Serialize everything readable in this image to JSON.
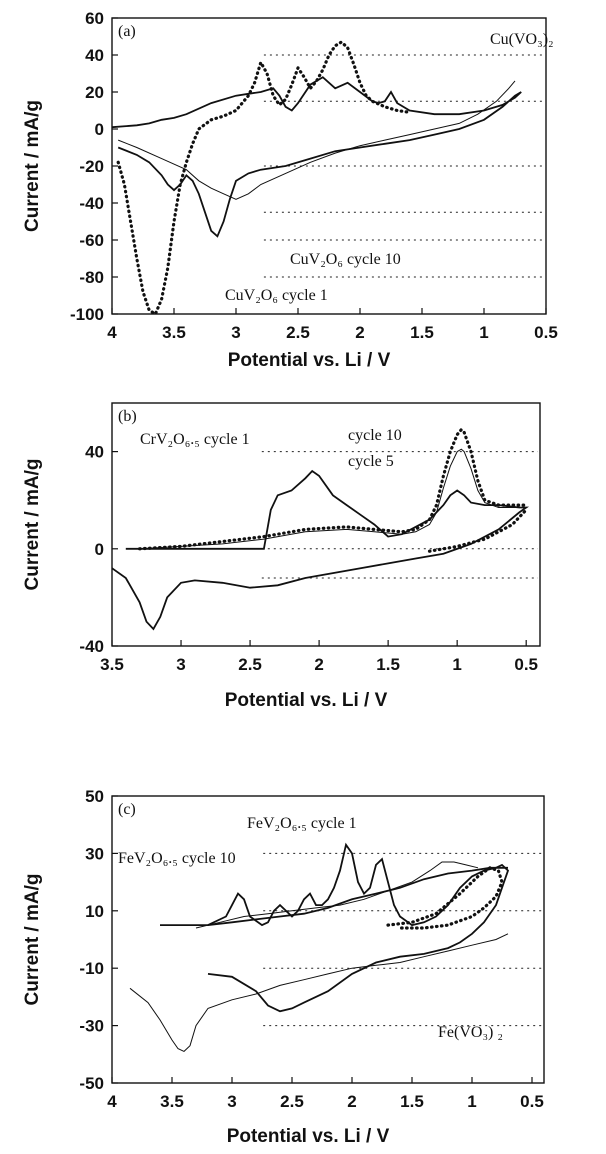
{
  "chart_data": [
    {
      "type": "line",
      "panel_label": "(a)",
      "xlabel": "Potential vs. Li  / V",
      "ylabel": "Current  / mA/g",
      "xlim": [
        4,
        0.5
      ],
      "ylim": [
        -100,
        60
      ],
      "xticks": [
        4,
        3.5,
        3,
        2.5,
        2,
        1.5,
        1,
        0.5
      ],
      "xtick_labels": [
        "4",
        "3.5",
        "3",
        "2.5",
        "2",
        "1.5",
        "1",
        "0.5"
      ],
      "yticks": [
        -100,
        -80,
        -60,
        -40,
        -20,
        0,
        20,
        40,
        60
      ],
      "ytick_labels": [
        "-100",
        "-80",
        "-60",
        "-40",
        "-20",
        "0",
        "20",
        "40",
        "60"
      ],
      "gridlines_y": [
        40,
        15,
        -20,
        -45,
        -60,
        -80
      ],
      "annotations": [
        {
          "text": "Cu(VO₃)₂",
          "x": 1.05,
          "y": 46
        },
        {
          "text": "CuV₂O₆   cycle 10",
          "x": 2.65,
          "y": -46
        },
        {
          "text": "CuV₂O₆   cycle 1",
          "x": 2.55,
          "y": -74
        }
      ],
      "series": [
        {
          "style": "dotted",
          "x": [
            3.95,
            3.9,
            3.85,
            3.8,
            3.75,
            3.7,
            3.65,
            3.6,
            3.55,
            3.5,
            3.45,
            3.4,
            3.35,
            3.3,
            3.2,
            3.1,
            3.0,
            2.95,
            2.9,
            2.85,
            2.8,
            2.75,
            2.7,
            2.65,
            2.6,
            2.55,
            2.5,
            2.45,
            2.4,
            2.35,
            2.3,
            2.25,
            2.2,
            2.15,
            2.1,
            2.05,
            2.0,
            1.95,
            1.9,
            1.8,
            1.7,
            1.6
          ],
          "y": [
            -18,
            -30,
            -50,
            -70,
            -88,
            -98,
            -100,
            -92,
            -75,
            -50,
            -30,
            -18,
            -8,
            0,
            5,
            7,
            10,
            14,
            18,
            25,
            36,
            30,
            18,
            13,
            16,
            24,
            33,
            28,
            22,
            26,
            32,
            40,
            45,
            47,
            44,
            35,
            25,
            18,
            15,
            12,
            10,
            9
          ]
        },
        {
          "style": "solid",
          "x": [
            3.95,
            3.8,
            3.7,
            3.6,
            3.55,
            3.5,
            3.45,
            3.4,
            3.35,
            3.3,
            3.25,
            3.2,
            3.15,
            3.1,
            3.05,
            3.0,
            2.9,
            2.8,
            2.6,
            2.4,
            2.2,
            2.0,
            1.8,
            1.6,
            1.4,
            1.2,
            1.0,
            0.85,
            0.75,
            0.7,
            0.75,
            0.85,
            1.0,
            1.2,
            1.4,
            1.6,
            1.7,
            1.75,
            1.8,
            1.85,
            1.9,
            2.0,
            2.1,
            2.2,
            2.3,
            2.4,
            2.5,
            2.55,
            2.6,
            2.65,
            2.7,
            2.8,
            2.9,
            3.0,
            3.2,
            3.4,
            3.5,
            3.6,
            3.7,
            3.8,
            4.0
          ],
          "y": [
            -10,
            -14,
            -18,
            -25,
            -30,
            -33,
            -30,
            -25,
            -28,
            -35,
            -45,
            -55,
            -58,
            -50,
            -38,
            -28,
            -24,
            -22,
            -20,
            -16,
            -12,
            -10,
            -8,
            -6,
            -3,
            0,
            5,
            12,
            18,
            20,
            17,
            13,
            10,
            8,
            8,
            10,
            14,
            20,
            15,
            14,
            15,
            20,
            25,
            22,
            28,
            24,
            14,
            10,
            12,
            18,
            22,
            20,
            19,
            18,
            14,
            8,
            6,
            5,
            3,
            2,
            1
          ]
        },
        {
          "style": "light",
          "x": [
            3.95,
            3.8,
            3.6,
            3.4,
            3.3,
            3.2,
            3.1,
            3.0,
            2.9,
            2.8,
            2.6,
            2.4,
            2.2,
            2.0,
            1.8,
            1.6,
            1.4,
            1.2,
            1.05,
            0.9,
            0.8,
            0.75
          ],
          "y": [
            -6,
            -10,
            -16,
            -22,
            -28,
            -32,
            -35,
            -38,
            -35,
            -30,
            -24,
            -18,
            -13,
            -9,
            -6,
            -3,
            0,
            3,
            8,
            15,
            22,
            26
          ]
        }
      ]
    },
    {
      "type": "line",
      "panel_label": "(b)",
      "xlabel": "Potential vs. Li  / V",
      "ylabel": "Current  / mA/g",
      "xlim": [
        3.5,
        0.4
      ],
      "ylim": [
        -40,
        60
      ],
      "xticks": [
        3.5,
        3,
        2.5,
        2,
        1.5,
        1,
        0.5
      ],
      "xtick_labels": [
        "3.5",
        "3",
        "2.5",
        "2",
        "1.5",
        "1",
        "0.5"
      ],
      "yticks": [
        -40,
        0,
        40
      ],
      "ytick_labels": [
        "-40",
        "0",
        "40"
      ],
      "gridlines_y": [
        40,
        0,
        -12
      ],
      "annotations": [
        {
          "text": "CrV₂O₆.₅  cycle 1",
          "x": 3.15,
          "y": 50
        },
        {
          "text": "cycle 10",
          "x": 1.5,
          "y": 52
        },
        {
          "text": "cycle 5",
          "x": 1.4,
          "y": 42
        }
      ],
      "series": [
        {
          "style": "solid",
          "x": [
            3.5,
            3.4,
            3.3,
            3.25,
            3.2,
            3.15,
            3.1,
            3.0,
            2.9,
            2.7,
            2.5,
            2.3,
            2.1,
            1.9,
            1.7,
            1.5,
            1.3,
            1.1,
            0.9,
            0.7,
            0.55,
            0.5,
            0.55,
            0.7,
            0.8,
            0.9,
            0.95,
            1.0,
            1.05,
            1.1,
            1.2,
            1.4,
            1.5,
            1.6,
            1.7,
            1.8,
            1.9,
            2.0,
            2.05,
            2.1,
            2.2,
            2.3,
            2.35,
            2.4,
            2.6,
            2.8,
            3.0,
            3.2,
            3.4
          ],
          "y": [
            -8,
            -12,
            -22,
            -30,
            -33,
            -28,
            -20,
            -14,
            -13,
            -14,
            -16,
            -15,
            -12,
            -10,
            -8,
            -6,
            -4,
            -2,
            2,
            8,
            15,
            17,
            17,
            18,
            18,
            19,
            22,
            24,
            22,
            18,
            12,
            6,
            5,
            10,
            14,
            18,
            22,
            30,
            32,
            29,
            24,
            22,
            16,
            0,
            0,
            0,
            0,
            0,
            0
          ]
        },
        {
          "style": "dotted",
          "x": [
            3.3,
            3.0,
            2.7,
            2.4,
            2.1,
            1.8,
            1.6,
            1.4,
            1.3,
            1.2,
            1.15,
            1.1,
            1.05,
            1.0,
            0.97,
            0.95,
            0.9,
            0.85,
            0.8,
            0.7,
            0.6,
            0.5
          ],
          "y": [
            0,
            1,
            3,
            5,
            8,
            9,
            8,
            7,
            8,
            12,
            18,
            30,
            40,
            47,
            49,
            48,
            40,
            28,
            20,
            18,
            18,
            18
          ]
        },
        {
          "style": "light",
          "x": [
            3.3,
            3.0,
            2.7,
            2.4,
            2.1,
            1.8,
            1.6,
            1.4,
            1.3,
            1.2,
            1.15,
            1.1,
            1.05,
            1.0,
            0.97,
            0.95,
            0.9,
            0.85,
            0.8,
            0.7,
            0.6,
            0.5
          ],
          "y": [
            0,
            1,
            2,
            4,
            7,
            8,
            7,
            6,
            7,
            10,
            15,
            25,
            34,
            40,
            41,
            40,
            33,
            24,
            19,
            17,
            17,
            17
          ]
        },
        {
          "style": "dotted",
          "x": [
            1.2,
            1.0,
            0.8,
            0.6,
            0.5
          ],
          "y": [
            -1,
            1,
            4,
            10,
            16
          ]
        }
      ]
    },
    {
      "type": "line",
      "panel_label": "(c)",
      "xlabel": "Potential vs. Li  / V",
      "ylabel": "Current  / mA/g",
      "xlim": [
        4,
        0.4
      ],
      "ylim": [
        -50,
        50
      ],
      "xticks": [
        4,
        3.5,
        3,
        2.5,
        2,
        1.5,
        1,
        0.5
      ],
      "xtick_labels": [
        "4",
        "3.5",
        "3",
        "2.5",
        "2",
        "1.5",
        "1",
        "0.5"
      ],
      "yticks": [
        -50,
        -30,
        -10,
        10,
        30,
        50
      ],
      "ytick_labels": [
        "-50",
        "-30",
        "-10",
        "10",
        "30",
        "50"
      ],
      "gridlines_y": [
        30,
        10,
        -10,
        -30
      ],
      "annotations": [
        {
          "text": "FeV₂O₆.₅  cycle 1",
          "x": 2.35,
          "y": 40
        },
        {
          "text": "FeV₂O₆.₅  cycle 10",
          "x": 3.85,
          "y": 21
        },
        {
          "text": "Fe(VO₃)  ₂",
          "x": 1.35,
          "y": -22
        }
      ],
      "series": [
        {
          "style": "solid",
          "x": [
            3.2,
            3.05,
            3.0,
            2.95,
            2.9,
            2.85,
            2.75,
            2.7,
            2.65,
            2.6,
            2.55,
            2.5,
            2.45,
            2.4,
            2.35,
            2.3,
            2.25,
            2.2,
            2.15,
            2.1,
            2.05,
            2.0,
            1.95,
            1.9,
            1.85,
            1.8,
            1.75,
            1.7,
            1.65,
            1.6,
            1.5,
            1.4,
            1.3,
            1.2,
            1.1,
            1.0,
            0.9,
            0.8,
            0.75,
            0.7,
            0.75,
            0.8,
            0.9,
            1.0,
            1.1,
            1.2,
            1.4,
            1.6,
            1.8,
            2.0,
            2.2,
            2.4,
            2.5,
            2.6,
            2.7,
            2.8,
            3.0,
            3.2
          ],
          "y": [
            5,
            8,
            12,
            16,
            14,
            8,
            5,
            6,
            10,
            12,
            10,
            8,
            10,
            14,
            16,
            12,
            12,
            14,
            18,
            24,
            33,
            30,
            20,
            16,
            18,
            26,
            28,
            20,
            12,
            8,
            5,
            6,
            8,
            12,
            18,
            22,
            24,
            25,
            26,
            24,
            18,
            12,
            6,
            2,
            -1,
            -3,
            -5,
            -6,
            -8,
            -12,
            -18,
            -22,
            -24,
            -25,
            -23,
            -18,
            -13,
            -12
          ]
        },
        {
          "style": "solid",
          "x": [
            3.6,
            3.4,
            3.2,
            3.0,
            2.8,
            2.6,
            2.4,
            2.2,
            2.0,
            1.8,
            1.6,
            1.4,
            1.2,
            1.0,
            0.85,
            0.75,
            0.7
          ],
          "y": [
            5,
            5,
            5,
            6,
            7,
            8,
            9,
            11,
            14,
            16,
            18,
            21,
            23,
            24,
            25,
            25,
            25
          ]
        },
        {
          "style": "light",
          "x": [
            3.3,
            3.1,
            2.9,
            2.7,
            2.5,
            2.3,
            2.1,
            1.9,
            1.7,
            1.5,
            1.35,
            1.25,
            1.15,
            1.05,
            0.95
          ],
          "y": [
            4,
            6,
            8,
            9,
            10,
            11,
            12,
            14,
            17,
            20,
            24,
            27,
            27,
            26,
            25
          ]
        },
        {
          "style": "light",
          "x": [
            3.85,
            3.7,
            3.6,
            3.5,
            3.45,
            3.4,
            3.35,
            3.3,
            3.2,
            3.0,
            2.8,
            2.6,
            2.4,
            2.2,
            2.0,
            1.8,
            1.6,
            1.4,
            1.2,
            1.0,
            0.8,
            0.7
          ],
          "y": [
            -17,
            -22,
            -28,
            -35,
            -38,
            -39,
            -37,
            -30,
            -24,
            -21,
            -19,
            -16,
            -14,
            -12,
            -10,
            -9,
            -8,
            -6,
            -4,
            -2,
            0,
            2
          ]
        },
        {
          "style": "dotted",
          "x": [
            1.7,
            1.5,
            1.3,
            1.1,
            0.95,
            0.85,
            0.78,
            0.75,
            0.8,
            0.9,
            1.0,
            1.2,
            1.4,
            1.6
          ],
          "y": [
            5,
            6,
            9,
            16,
            22,
            25,
            24,
            20,
            15,
            11,
            8,
            5,
            4,
            4
          ]
        }
      ]
    }
  ]
}
